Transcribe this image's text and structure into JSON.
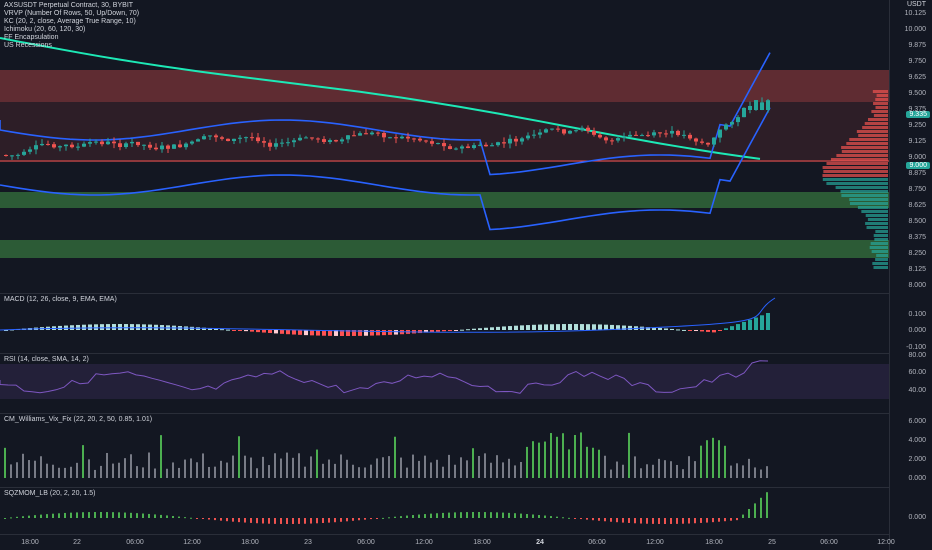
{
  "main": {
    "symbol": "AXSUSDT Perpetual Contract, 30, BYBIT",
    "indicators": [
      "VRVP (Number Of Rows, 50, Up/Down, 70)",
      "KC (20, 2, close, Average True Range, 10)",
      "Ichimoku (20, 60, 120, 30)",
      "FF Encapsulation",
      "US Recessions"
    ],
    "unit": "USDT",
    "y_ticks": [
      "10.125",
      "10.000",
      "9.875",
      "9.750",
      "9.625",
      "9.500",
      "9.375",
      "9.250",
      "9.125",
      "9.000",
      "8.875",
      "8.750",
      "8.625",
      "8.500",
      "8.375",
      "8.250",
      "8.125",
      "8.000"
    ],
    "price_tag": "9.335",
    "price_tag2": "9.000"
  },
  "macd": {
    "label": "MACD (12, 26, close, 9, EMA, EMA)",
    "y_ticks": [
      "0.100",
      "0.000",
      "-0.100"
    ]
  },
  "rsi": {
    "label": "RSI (14, close, SMA, 14, 2)",
    "y_ticks": [
      "80.00",
      "60.00",
      "40.00"
    ]
  },
  "vix": {
    "label": "CM_Williams_Vix_Fix (22, 20, 2, 50, 0.85, 1.01)",
    "y_ticks": [
      "6.000",
      "4.000",
      "2.000",
      "0.000"
    ]
  },
  "sqz": {
    "label": "SQZMOM_LB (20, 2, 20, 1.5)",
    "y_ticks": [
      "0.000"
    ]
  },
  "x_ticks": [
    "18:00",
    "22",
    "06:00",
    "12:00",
    "18:00",
    "23",
    "06:00",
    "12:00",
    "18:00",
    "24",
    "06:00",
    "12:00",
    "18:00",
    "25",
    "06:00",
    "12:00"
  ],
  "colors": {
    "up": "#26a69a",
    "down": "#ef5350",
    "bg": "#131722"
  }
}
